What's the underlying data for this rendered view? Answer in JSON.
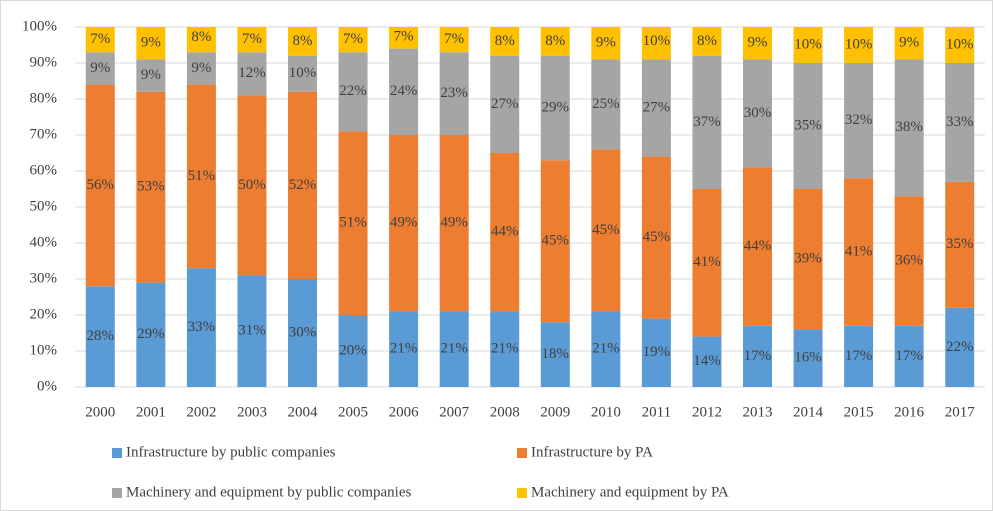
{
  "chart_data": {
    "type": "stacked_bar",
    "categories": [
      "2000",
      "2001",
      "2002",
      "2003",
      "2004",
      "2005",
      "2006",
      "2007",
      "2008",
      "2009",
      "2010",
      "2011",
      "2012",
      "2013",
      "2014",
      "2015",
      "2016",
      "2017"
    ],
    "series": [
      {
        "name": "Infrastructure by public companies",
        "color": "#5b9bd5",
        "values": [
          28,
          29,
          33,
          31,
          30,
          20,
          21,
          21,
          21,
          18,
          21,
          19,
          14,
          17,
          16,
          17,
          17,
          22
        ],
        "value_labels": [
          "28%",
          "29%",
          "33%",
          "31%",
          "30%",
          "20%",
          "21%",
          "21%",
          "21%",
          "18%",
          "21%",
          "19%",
          "14%",
          "17%",
          "16%",
          "17%",
          "17%",
          "22%"
        ]
      },
      {
        "name": "Infrastructure by PA",
        "color": "#ed7d31",
        "values": [
          56,
          53,
          51,
          50,
          52,
          51,
          49,
          49,
          44,
          45,
          45,
          45,
          41,
          44,
          39,
          41,
          36,
          35
        ],
        "value_labels": [
          "56%",
          "53%",
          "51%",
          "50%",
          "52%",
          "51%",
          "49%",
          "49%",
          "44%",
          "45%",
          "45%",
          "45%",
          "41%",
          "44%",
          "39%",
          "41%",
          "36%",
          "35%"
        ]
      },
      {
        "name": "Machinery and equipment by public companies",
        "color": "#a5a5a5",
        "values": [
          9,
          9,
          9,
          12,
          10,
          22,
          24,
          23,
          27,
          29,
          25,
          27,
          37,
          30,
          35,
          32,
          38,
          33
        ],
        "value_labels": [
          "9%",
          "9%",
          "9%",
          "12%",
          "10%",
          "22%",
          "24%",
          "23%",
          "27%",
          "29%",
          "25%",
          "27%",
          "37%",
          "30%",
          "35%",
          "32%",
          "38%",
          "33%"
        ]
      },
      {
        "name": "Machinery and equipment by PA",
        "color": "#ffc000",
        "values": [
          7,
          9,
          8,
          7,
          8,
          7,
          7,
          7,
          8,
          8,
          9,
          10,
          8,
          9,
          10,
          10,
          9,
          10
        ],
        "value_labels": [
          "7%",
          "9%",
          "8%",
          "7%",
          "8%",
          "7%",
          "7%",
          "7%",
          "8%",
          "8%",
          "9%",
          "10%",
          "8%",
          "9%",
          "10%",
          "10%",
          "9%",
          "10%"
        ]
      }
    ],
    "ylim": [
      0,
      100
    ],
    "yticks": [
      {
        "value": 0,
        "label": "0%"
      },
      {
        "value": 10,
        "label": "10%"
      },
      {
        "value": 20,
        "label": "20%"
      },
      {
        "value": 30,
        "label": "30%"
      },
      {
        "value": 40,
        "label": "40%"
      },
      {
        "value": 50,
        "label": "50%"
      },
      {
        "value": 60,
        "label": "60%"
      },
      {
        "value": 70,
        "label": "70%"
      },
      {
        "value": 80,
        "label": "80%"
      },
      {
        "value": 90,
        "label": "90%"
      },
      {
        "value": 100,
        "label": "100%"
      }
    ],
    "grid": true
  }
}
